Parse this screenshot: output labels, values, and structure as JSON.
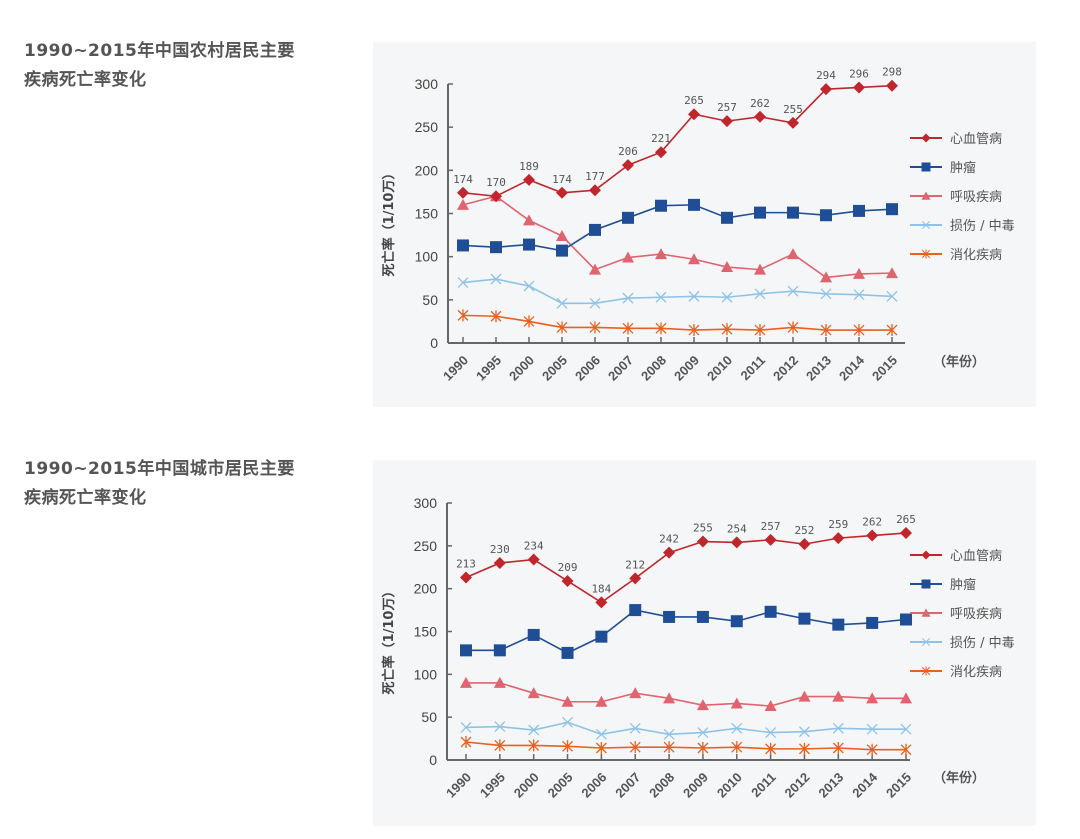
{
  "chart_data": [
    {
      "type": "line",
      "title": "1990~2015年中国农村居民主要疾病死亡率变化",
      "title_lines": [
        "1990~2015年中国农村居民主要",
        "疾病死亡率变化"
      ],
      "ylabel": "死亡率（1/10万）",
      "xlabel": "（年份）",
      "ylim": [
        0,
        300
      ],
      "yticks": [
        "0",
        "50",
        "100",
        "150",
        "200",
        "250",
        "300"
      ],
      "categories": [
        "1990",
        "1995",
        "2000",
        "2005",
        "2006",
        "2007",
        "2008",
        "2009",
        "2010",
        "2011",
        "2012",
        "2013",
        "2014",
        "2015"
      ],
      "legend_position": "right",
      "series": [
        {
          "name": "心血管病",
          "color": "#c0272d",
          "marker": "diamond",
          "labeled": true,
          "values": [
            174,
            170,
            189,
            174,
            177,
            206,
            221,
            265,
            257,
            262,
            255,
            294,
            296,
            298
          ]
        },
        {
          "name": "肿瘤",
          "color": "#1f4e96",
          "marker": "square",
          "labeled": false,
          "values": [
            113,
            111,
            114,
            107,
            131,
            145,
            159,
            160,
            145,
            151,
            151,
            148,
            153,
            155
          ]
        },
        {
          "name": "呼吸疾病",
          "color": "#e06470",
          "marker": "triangle",
          "labeled": false,
          "values": [
            160,
            170,
            142,
            124,
            85,
            99,
            103,
            97,
            88,
            85,
            103,
            76,
            80,
            81
          ]
        },
        {
          "name": "损伤 / 中毒",
          "color": "#8ec3e8",
          "marker": "x",
          "labeled": false,
          "values": [
            70,
            74,
            66,
            46,
            46,
            52,
            53,
            54,
            53,
            57,
            60,
            57,
            56,
            54
          ]
        },
        {
          "name": "消化疾病",
          "color": "#e9601f",
          "marker": "star",
          "labeled": false,
          "values": [
            32,
            31,
            25,
            18,
            18,
            17,
            17,
            15,
            16,
            15,
            18,
            15,
            15,
            15
          ]
        }
      ]
    },
    {
      "type": "line",
      "title": "1990~2015年中国城市居民主要疾病死亡率变化",
      "title_lines": [
        "1990~2015年中国城市居民主要",
        "疾病死亡率变化"
      ],
      "ylabel": "死亡率（1/10万）",
      "xlabel": "（年份）",
      "ylim": [
        0,
        300
      ],
      "yticks": [
        "0",
        "50",
        "100",
        "150",
        "200",
        "250",
        "300"
      ],
      "categories": [
        "1990",
        "1995",
        "2000",
        "2005",
        "2006",
        "2007",
        "2008",
        "2009",
        "2010",
        "2011",
        "2012",
        "2013",
        "2014",
        "2015"
      ],
      "legend_position": "right",
      "series": [
        {
          "name": "心血管病",
          "color": "#c0272d",
          "marker": "diamond",
          "labeled": true,
          "values": [
            213,
            230,
            234,
            209,
            184,
            212,
            242,
            255,
            254,
            257,
            252,
            259,
            262,
            265
          ]
        },
        {
          "name": "肿瘤",
          "color": "#1f4e96",
          "marker": "square",
          "labeled": false,
          "values": [
            128,
            128,
            146,
            125,
            144,
            175,
            167,
            167,
            162,
            173,
            165,
            158,
            160,
            164
          ]
        },
        {
          "name": "呼吸疾病",
          "color": "#e06470",
          "marker": "triangle",
          "labeled": false,
          "values": [
            90,
            90,
            78,
            68,
            68,
            78,
            72,
            64,
            66,
            63,
            74,
            74,
            72,
            72
          ]
        },
        {
          "name": "损伤 / 中毒",
          "color": "#8ec3e8",
          "marker": "x",
          "labeled": false,
          "values": [
            38,
            39,
            35,
            44,
            30,
            37,
            30,
            32,
            37,
            32,
            33,
            37,
            36,
            36
          ]
        },
        {
          "name": "消化疾病",
          "color": "#e9601f",
          "marker": "star",
          "labeled": false,
          "values": [
            21,
            17,
            17,
            16,
            14,
            15,
            15,
            14,
            15,
            13,
            13,
            14,
            12,
            12
          ]
        }
      ]
    }
  ]
}
